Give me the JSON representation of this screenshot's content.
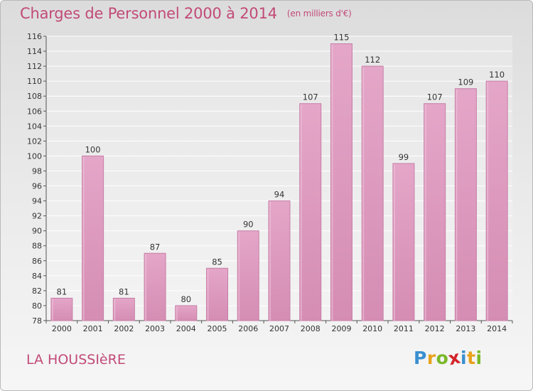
{
  "chart_data": {
    "type": "bar",
    "title": "Charges de Personnel 2000 à 2014",
    "unit_note": "(en milliers d'€)",
    "categories": [
      "2000",
      "2001",
      "2002",
      "2003",
      "2004",
      "2005",
      "2006",
      "2007",
      "2008",
      "2009",
      "2010",
      "2011",
      "2012",
      "2013",
      "2014"
    ],
    "values": [
      81,
      100,
      81,
      87,
      80,
      85,
      90,
      94,
      107,
      115,
      112,
      99,
      107,
      109,
      110
    ],
    "ylim": [
      78,
      116
    ],
    "yticks": [
      "78",
      "80",
      "82",
      "84",
      "86",
      "88",
      "90",
      "92",
      "94",
      "96",
      "98",
      "100",
      "102",
      "104",
      "106",
      "108",
      "110",
      "112",
      "114",
      "116"
    ],
    "grid": true,
    "bar_color": "#d58db3"
  },
  "commune": "LA HOUSSIèRE",
  "logo": {
    "letters": [
      "P",
      "r",
      "o",
      "x",
      "i",
      "t",
      "i"
    ],
    "colors": [
      "#3a8fd0",
      "#e8a21c",
      "#7ab829",
      "#d2232a",
      "#3a8fd0",
      "#e8a21c",
      "#7ab829"
    ]
  }
}
